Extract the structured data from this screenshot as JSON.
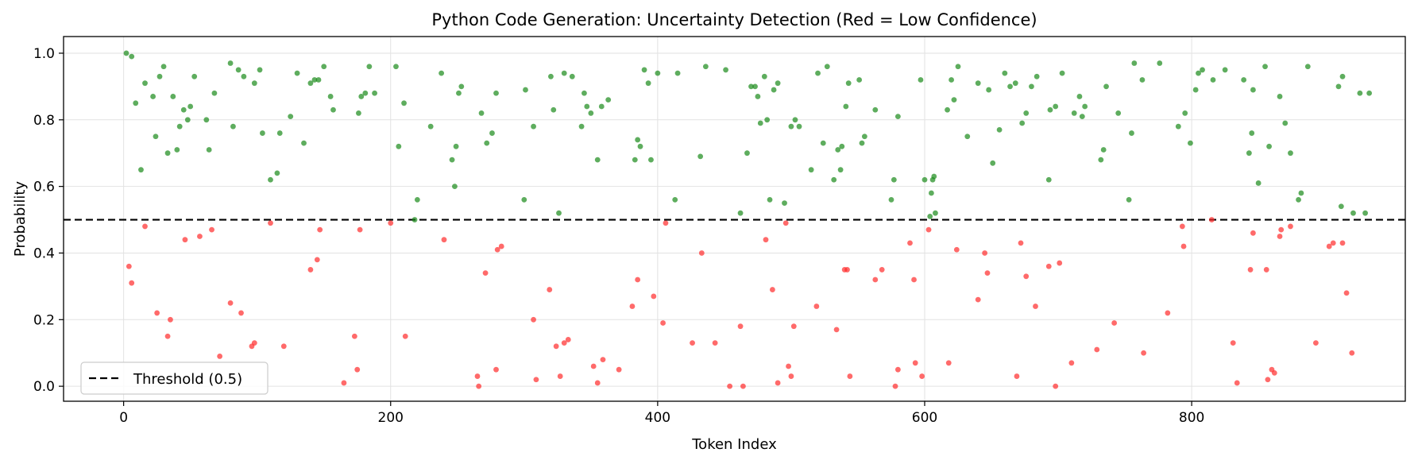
{
  "chart_data": {
    "type": "scatter",
    "title": "Python Code Generation: Uncertainty Detection (Red = Low Confidence)",
    "xlabel": "Token Index",
    "ylabel": "Probability",
    "xlim": [
      -45,
      960
    ],
    "ylim": [
      -0.045,
      1.05
    ],
    "xticks": [
      0,
      200,
      400,
      600,
      800
    ],
    "yticks": [
      0.0,
      0.2,
      0.4,
      0.6,
      0.8,
      1.0
    ],
    "grid": true,
    "threshold": 0.5,
    "legend": {
      "placement": "lower-left",
      "entries": [
        "Threshold (0.5)"
      ]
    },
    "colors": {
      "high": "#1a8a1a",
      "low": "#ff2b2b",
      "threshold": "#000000"
    },
    "series": [
      {
        "color_role": "high",
        "points": [
          [
            2,
            1.0
          ],
          [
            6,
            0.99
          ],
          [
            9,
            0.85
          ],
          [
            13,
            0.65
          ],
          [
            16,
            0.91
          ],
          [
            22,
            0.87
          ],
          [
            24,
            0.75
          ],
          [
            27,
            0.93
          ],
          [
            30,
            0.96
          ],
          [
            33,
            0.7
          ],
          [
            37,
            0.87
          ],
          [
            40,
            0.71
          ],
          [
            42,
            0.78
          ],
          [
            45,
            0.83
          ],
          [
            48,
            0.8
          ],
          [
            50,
            0.84
          ],
          [
            53,
            0.93
          ],
          [
            62,
            0.8
          ],
          [
            64,
            0.71
          ],
          [
            68,
            0.88
          ],
          [
            80,
            0.97
          ],
          [
            82,
            0.78
          ],
          [
            86,
            0.95
          ],
          [
            90,
            0.93
          ],
          [
            98,
            0.91
          ],
          [
            102,
            0.95
          ],
          [
            104,
            0.76
          ],
          [
            110,
            0.62
          ],
          [
            115,
            0.64
          ],
          [
            117,
            0.76
          ],
          [
            125,
            0.81
          ],
          [
            130,
            0.94
          ],
          [
            135,
            0.73
          ],
          [
            140,
            0.91
          ],
          [
            143,
            0.92
          ],
          [
            146,
            0.92
          ],
          [
            150,
            0.96
          ],
          [
            155,
            0.87
          ],
          [
            157,
            0.83
          ],
          [
            176,
            0.82
          ],
          [
            178,
            0.87
          ],
          [
            181,
            0.88
          ],
          [
            184,
            0.96
          ],
          [
            188,
            0.88
          ],
          [
            204,
            0.96
          ],
          [
            206,
            0.72
          ],
          [
            210,
            0.85
          ],
          [
            218,
            0.5
          ],
          [
            220,
            0.56
          ],
          [
            230,
            0.78
          ],
          [
            238,
            0.94
          ],
          [
            246,
            0.68
          ],
          [
            248,
            0.6
          ],
          [
            249,
            0.72
          ],
          [
            251,
            0.88
          ],
          [
            253,
            0.9
          ],
          [
            268,
            0.82
          ],
          [
            272,
            0.73
          ],
          [
            276,
            0.76
          ],
          [
            279,
            0.88
          ],
          [
            300,
            0.56
          ],
          [
            301,
            0.89
          ],
          [
            307,
            0.78
          ],
          [
            320,
            0.93
          ],
          [
            322,
            0.83
          ],
          [
            326,
            0.52
          ],
          [
            330,
            0.94
          ],
          [
            336,
            0.93
          ],
          [
            343,
            0.78
          ],
          [
            345,
            0.88
          ],
          [
            347,
            0.84
          ],
          [
            350,
            0.82
          ],
          [
            355,
            0.68
          ],
          [
            358,
            0.84
          ],
          [
            363,
            0.86
          ],
          [
            383,
            0.68
          ],
          [
            385,
            0.74
          ],
          [
            387,
            0.72
          ],
          [
            390,
            0.95
          ],
          [
            393,
            0.91
          ],
          [
            395,
            0.68
          ],
          [
            400,
            0.94
          ],
          [
            413,
            0.56
          ],
          [
            415,
            0.94
          ],
          [
            432,
            0.69
          ],
          [
            436,
            0.96
          ],
          [
            451,
            0.95
          ],
          [
            462,
            0.52
          ],
          [
            467,
            0.7
          ],
          [
            470,
            0.9
          ],
          [
            473,
            0.9
          ],
          [
            475,
            0.87
          ],
          [
            477,
            0.79
          ],
          [
            480,
            0.93
          ],
          [
            482,
            0.8
          ],
          [
            484,
            0.56
          ],
          [
            487,
            0.89
          ],
          [
            490,
            0.91
          ],
          [
            495,
            0.55
          ],
          [
            500,
            0.78
          ],
          [
            503,
            0.8
          ],
          [
            506,
            0.78
          ],
          [
            515,
            0.65
          ],
          [
            520,
            0.94
          ],
          [
            524,
            0.73
          ],
          [
            527,
            0.96
          ],
          [
            532,
            0.62
          ],
          [
            535,
            0.71
          ],
          [
            537,
            0.65
          ],
          [
            538,
            0.72
          ],
          [
            541,
            0.84
          ],
          [
            543,
            0.91
          ],
          [
            551,
            0.92
          ],
          [
            553,
            0.73
          ],
          [
            555,
            0.75
          ],
          [
            563,
            0.83
          ],
          [
            575,
            0.56
          ],
          [
            577,
            0.62
          ],
          [
            580,
            0.81
          ],
          [
            597,
            0.92
          ],
          [
            600,
            0.62
          ],
          [
            604,
            0.51
          ],
          [
            605,
            0.58
          ],
          [
            606,
            0.62
          ],
          [
            607,
            0.63
          ],
          [
            608,
            0.52
          ],
          [
            617,
            0.83
          ],
          [
            620,
            0.92
          ],
          [
            622,
            0.86
          ],
          [
            625,
            0.96
          ],
          [
            632,
            0.75
          ],
          [
            640,
            0.91
          ],
          [
            648,
            0.89
          ],
          [
            651,
            0.67
          ],
          [
            656,
            0.77
          ],
          [
            660,
            0.94
          ],
          [
            664,
            0.9
          ],
          [
            668,
            0.91
          ],
          [
            673,
            0.79
          ],
          [
            676,
            0.82
          ],
          [
            680,
            0.9
          ],
          [
            684,
            0.93
          ],
          [
            693,
            0.62
          ],
          [
            694,
            0.83
          ],
          [
            698,
            0.84
          ],
          [
            703,
            0.94
          ],
          [
            712,
            0.82
          ],
          [
            716,
            0.87
          ],
          [
            718,
            0.81
          ],
          [
            720,
            0.84
          ],
          [
            732,
            0.68
          ],
          [
            734,
            0.71
          ],
          [
            736,
            0.9
          ],
          [
            745,
            0.82
          ],
          [
            753,
            0.56
          ],
          [
            755,
            0.76
          ],
          [
            757,
            0.97
          ],
          [
            763,
            0.92
          ],
          [
            776,
            0.97
          ],
          [
            790,
            0.78
          ],
          [
            795,
            0.82
          ],
          [
            799,
            0.73
          ],
          [
            803,
            0.89
          ],
          [
            805,
            0.94
          ],
          [
            808,
            0.95
          ],
          [
            816,
            0.92
          ],
          [
            825,
            0.95
          ],
          [
            839,
            0.92
          ],
          [
            843,
            0.7
          ],
          [
            845,
            0.76
          ],
          [
            846,
            0.89
          ],
          [
            850,
            0.61
          ],
          [
            855,
            0.96
          ],
          [
            858,
            0.72
          ],
          [
            866,
            0.87
          ],
          [
            870,
            0.79
          ],
          [
            874,
            0.7
          ],
          [
            880,
            0.56
          ],
          [
            882,
            0.58
          ],
          [
            887,
            0.96
          ],
          [
            910,
            0.9
          ],
          [
            912,
            0.54
          ],
          [
            913,
            0.93
          ],
          [
            921,
            0.52
          ],
          [
            926,
            0.88
          ],
          [
            930,
            0.52
          ],
          [
            933,
            0.88
          ]
        ]
      },
      {
        "color_role": "low",
        "points": [
          [
            4,
            0.36
          ],
          [
            6,
            0.31
          ],
          [
            16,
            0.48
          ],
          [
            25,
            0.22
          ],
          [
            33,
            0.15
          ],
          [
            35,
            0.2
          ],
          [
            46,
            0.44
          ],
          [
            57,
            0.45
          ],
          [
            66,
            0.47
          ],
          [
            72,
            0.09
          ],
          [
            80,
            0.25
          ],
          [
            88,
            0.22
          ],
          [
            96,
            0.12
          ],
          [
            98,
            0.13
          ],
          [
            110,
            0.49
          ],
          [
            120,
            0.12
          ],
          [
            140,
            0.35
          ],
          [
            145,
            0.38
          ],
          [
            147,
            0.47
          ],
          [
            165,
            0.01
          ],
          [
            173,
            0.15
          ],
          [
            175,
            0.05
          ],
          [
            177,
            0.47
          ],
          [
            200,
            0.49
          ],
          [
            211,
            0.15
          ],
          [
            240,
            0.44
          ],
          [
            265,
            0.03
          ],
          [
            266,
            0.0
          ],
          [
            271,
            0.34
          ],
          [
            279,
            0.05
          ],
          [
            280,
            0.41
          ],
          [
            283,
            0.42
          ],
          [
            307,
            0.2
          ],
          [
            309,
            0.02
          ],
          [
            319,
            0.29
          ],
          [
            324,
            0.12
          ],
          [
            327,
            0.03
          ],
          [
            330,
            0.13
          ],
          [
            333,
            0.14
          ],
          [
            352,
            0.06
          ],
          [
            355,
            0.01
          ],
          [
            359,
            0.08
          ],
          [
            371,
            0.05
          ],
          [
            381,
            0.24
          ],
          [
            385,
            0.32
          ],
          [
            397,
            0.27
          ],
          [
            404,
            0.19
          ],
          [
            406,
            0.49
          ],
          [
            426,
            0.13
          ],
          [
            433,
            0.4
          ],
          [
            443,
            0.13
          ],
          [
            454,
            0.0
          ],
          [
            462,
            0.18
          ],
          [
            464,
            0.0
          ],
          [
            481,
            0.44
          ],
          [
            486,
            0.29
          ],
          [
            490,
            0.01
          ],
          [
            496,
            0.49
          ],
          [
            498,
            0.06
          ],
          [
            500,
            0.03
          ],
          [
            502,
            0.18
          ],
          [
            519,
            0.24
          ],
          [
            534,
            0.17
          ],
          [
            540,
            0.35
          ],
          [
            542,
            0.35
          ],
          [
            544,
            0.03
          ],
          [
            563,
            0.32
          ],
          [
            568,
            0.35
          ],
          [
            578,
            0.0
          ],
          [
            580,
            0.05
          ],
          [
            589,
            0.43
          ],
          [
            592,
            0.32
          ],
          [
            593,
            0.07
          ],
          [
            598,
            0.03
          ],
          [
            603,
            0.47
          ],
          [
            618,
            0.07
          ],
          [
            624,
            0.41
          ],
          [
            640,
            0.26
          ],
          [
            645,
            0.4
          ],
          [
            647,
            0.34
          ],
          [
            669,
            0.03
          ],
          [
            672,
            0.43
          ],
          [
            676,
            0.33
          ],
          [
            683,
            0.24
          ],
          [
            693,
            0.36
          ],
          [
            698,
            0.0
          ],
          [
            701,
            0.37
          ],
          [
            710,
            0.07
          ],
          [
            729,
            0.11
          ],
          [
            742,
            0.19
          ],
          [
            764,
            0.1
          ],
          [
            782,
            0.22
          ],
          [
            793,
            0.48
          ],
          [
            794,
            0.42
          ],
          [
            815,
            0.5
          ],
          [
            831,
            0.13
          ],
          [
            834,
            0.01
          ],
          [
            844,
            0.35
          ],
          [
            846,
            0.46
          ],
          [
            856,
            0.35
          ],
          [
            857,
            0.02
          ],
          [
            860,
            0.05
          ],
          [
            862,
            0.04
          ],
          [
            866,
            0.45
          ],
          [
            867,
            0.47
          ],
          [
            874,
            0.48
          ],
          [
            893,
            0.13
          ],
          [
            903,
            0.42
          ],
          [
            906,
            0.43
          ],
          [
            913,
            0.43
          ],
          [
            916,
            0.28
          ],
          [
            920,
            0.1
          ]
        ]
      }
    ]
  }
}
